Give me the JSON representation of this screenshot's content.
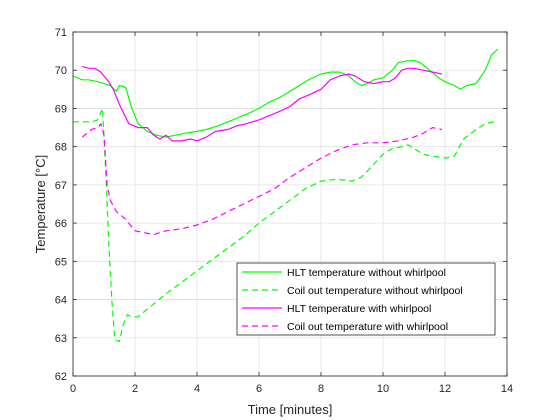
{
  "chart_data": {
    "type": "line",
    "xlabel": "Time [minutes]",
    "ylabel": "Temperature [°C]",
    "xlim": [
      0,
      14
    ],
    "ylim": [
      62,
      71
    ],
    "xticks": [
      0,
      2,
      4,
      6,
      8,
      10,
      12,
      14
    ],
    "yticks": [
      62,
      63,
      64,
      65,
      66,
      67,
      68,
      69,
      70,
      71
    ],
    "grid": true,
    "legend_position": "bottom-right",
    "series": [
      {
        "name": "HLT temperature without whirlpool",
        "color": "#00ff00",
        "dash": "solid",
        "x": [
          0,
          0.3,
          0.5,
          0.8,
          1.0,
          1.2,
          1.4,
          1.5,
          1.7,
          1.9,
          2.1,
          2.4,
          2.7,
          3.0,
          3.3,
          3.6,
          4.0,
          4.3,
          4.7,
          5.0,
          5.3,
          5.6,
          6.0,
          6.3,
          6.7,
          7.0,
          7.3,
          7.6,
          8.0,
          8.3,
          8.6,
          8.9,
          9.1,
          9.3,
          9.5,
          9.7,
          10.0,
          10.3,
          10.5,
          10.8,
          11.0,
          11.2,
          11.5,
          11.8,
          12.0,
          12.3,
          12.5,
          12.7,
          13.0,
          13.3,
          13.5,
          13.7
        ],
        "values": [
          69.85,
          69.75,
          69.75,
          69.7,
          69.65,
          69.6,
          69.45,
          69.6,
          69.55,
          69.0,
          68.6,
          68.4,
          68.3,
          68.25,
          68.3,
          68.35,
          68.4,
          68.45,
          68.55,
          68.65,
          68.75,
          68.85,
          69.0,
          69.15,
          69.3,
          69.45,
          69.6,
          69.75,
          69.9,
          69.95,
          69.95,
          69.85,
          69.7,
          69.6,
          69.65,
          69.75,
          69.8,
          70.0,
          70.2,
          70.25,
          70.25,
          70.2,
          70.0,
          69.8,
          69.7,
          69.6,
          69.5,
          69.6,
          69.65,
          70.0,
          70.4,
          70.55
        ]
      },
      {
        "name": "Coil out temperature without whirlpool",
        "color": "#00ff00",
        "dash": "dashed",
        "x": [
          0,
          0.3,
          0.6,
          0.8,
          0.95,
          1.05,
          1.15,
          1.25,
          1.35,
          1.5,
          1.6,
          1.75,
          1.9,
          2.1,
          2.4,
          2.7,
          3.0,
          3.5,
          4.0,
          4.5,
          5.0,
          5.5,
          6.0,
          6.5,
          7.0,
          7.5,
          8.0,
          8.5,
          9.0,
          9.3,
          9.6,
          10.0,
          10.3,
          10.6,
          10.8,
          11.0,
          11.3,
          11.6,
          12.0,
          12.3,
          12.6,
          13.0,
          13.3,
          13.6
        ],
        "values": [
          68.65,
          68.65,
          68.65,
          68.7,
          69.0,
          67.5,
          65.5,
          64.0,
          62.95,
          62.9,
          63.3,
          63.6,
          63.55,
          63.55,
          63.75,
          63.95,
          64.15,
          64.45,
          64.75,
          65.05,
          65.35,
          65.65,
          66.0,
          66.3,
          66.6,
          66.9,
          67.1,
          67.15,
          67.1,
          67.2,
          67.45,
          67.8,
          67.95,
          68.0,
          68.05,
          67.95,
          67.8,
          67.75,
          67.7,
          67.75,
          68.2,
          68.45,
          68.6,
          68.65
        ]
      },
      {
        "name": "HLT temperature with whirlpool",
        "color": "#ff00ff",
        "dash": "solid",
        "x": [
          0.3,
          0.5,
          0.7,
          0.9,
          1.0,
          1.15,
          1.3,
          1.5,
          1.8,
          2.1,
          2.4,
          2.6,
          2.8,
          3.0,
          3.2,
          3.5,
          3.8,
          4.0,
          4.3,
          4.6,
          5.0,
          5.3,
          5.6,
          6.0,
          6.3,
          6.6,
          7.0,
          7.3,
          7.6,
          8.0,
          8.3,
          8.6,
          8.9,
          9.1,
          9.4,
          9.7,
          10.0,
          10.2,
          10.4,
          10.6,
          10.8,
          11.0,
          11.3,
          11.6,
          11.9
        ],
        "values": [
          70.1,
          70.05,
          70.05,
          69.95,
          69.85,
          69.7,
          69.5,
          69.1,
          68.6,
          68.5,
          68.5,
          68.3,
          68.2,
          68.3,
          68.15,
          68.15,
          68.2,
          68.15,
          68.25,
          68.4,
          68.45,
          68.55,
          68.6,
          68.7,
          68.8,
          68.9,
          69.05,
          69.25,
          69.35,
          69.5,
          69.75,
          69.85,
          69.9,
          69.85,
          69.7,
          69.65,
          69.7,
          69.7,
          69.8,
          70.0,
          70.05,
          70.05,
          70.0,
          69.95,
          69.9
        ]
      },
      {
        "name": "Coil out temperature with whirlpool",
        "color": "#ff00ff",
        "dash": "dashed",
        "x": [
          0.3,
          0.6,
          0.8,
          0.9,
          1.0,
          1.1,
          1.2,
          1.4,
          1.7,
          2.0,
          2.3,
          2.6,
          3.0,
          3.5,
          4.0,
          4.5,
          5.0,
          5.5,
          6.0,
          6.5,
          7.0,
          7.5,
          8.0,
          8.5,
          9.0,
          9.5,
          10.0,
          10.5,
          11.0,
          11.3,
          11.6,
          11.9
        ],
        "values": [
          68.25,
          68.45,
          68.5,
          68.6,
          68.3,
          67.0,
          66.6,
          66.3,
          66.1,
          65.8,
          65.75,
          65.7,
          65.8,
          65.85,
          65.95,
          66.1,
          66.3,
          66.5,
          66.7,
          66.9,
          67.2,
          67.45,
          67.7,
          67.9,
          68.05,
          68.1,
          68.1,
          68.15,
          68.25,
          68.35,
          68.5,
          68.45
        ]
      }
    ]
  }
}
